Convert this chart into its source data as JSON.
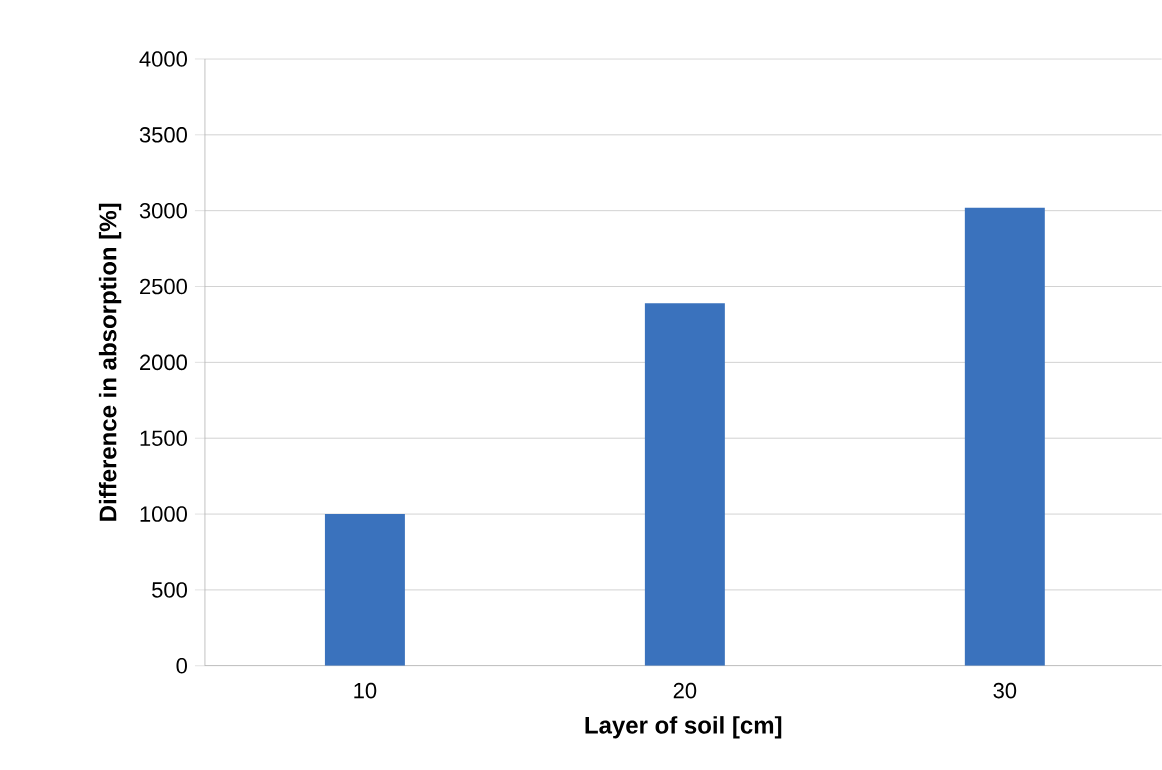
{
  "chart_data": {
    "type": "bar",
    "xlabel": "Layer of soil [cm]",
    "ylabel": "Difference in absorption [%]",
    "categories": [
      "10",
      "20",
      "30"
    ],
    "values": [
      1000,
      2390,
      3020
    ],
    "color": "#3a72bd",
    "ylim": [
      0,
      4000
    ],
    "yticks": [
      0,
      500,
      1000,
      1500,
      2000,
      2500,
      3000,
      3500,
      4000
    ],
    "grid": "y"
  }
}
